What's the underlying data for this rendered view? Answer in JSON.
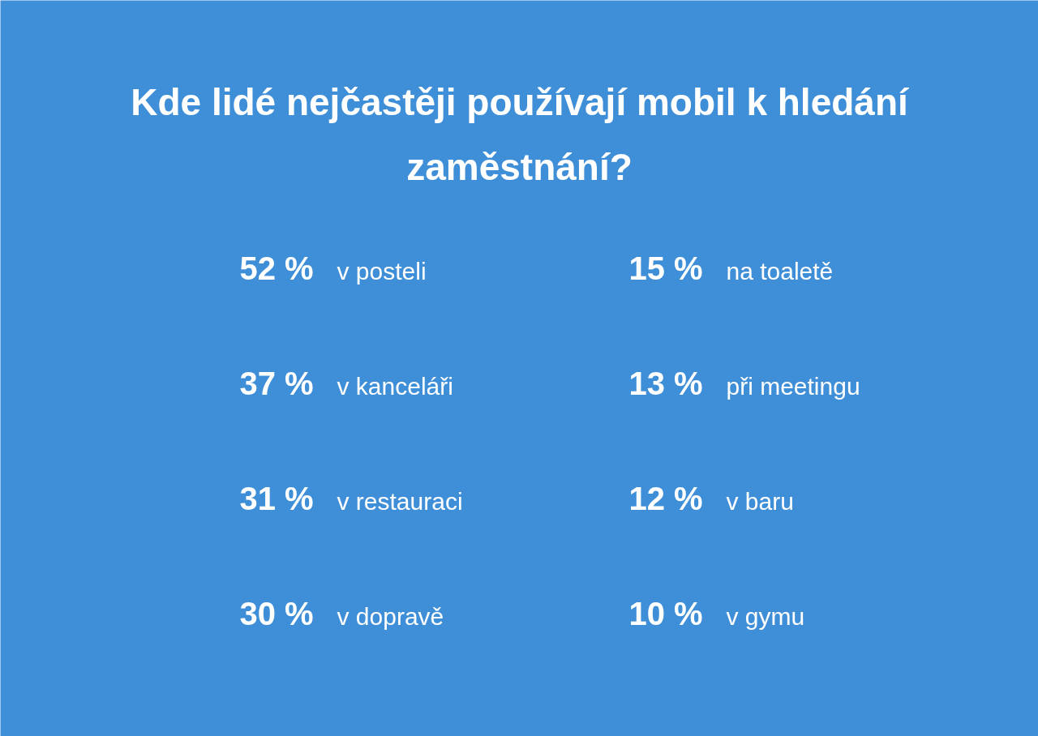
{
  "chart_data": {
    "type": "other",
    "title": "Kde lidé nejčastěji používají mobil k hledání zaměstnání?",
    "categories": [
      "v posteli",
      "v kanceláři",
      "v restauraci",
      "v dopravě",
      "na toaletě",
      "při meetingu",
      "v baru",
      "v gymu"
    ],
    "values": [
      52,
      37,
      31,
      30,
      15,
      13,
      12,
      10
    ],
    "value_labels": [
      "52 %",
      "37 %",
      "31 %",
      "30 %",
      "15 %",
      "13 %",
      "12 %",
      "10 %"
    ]
  }
}
